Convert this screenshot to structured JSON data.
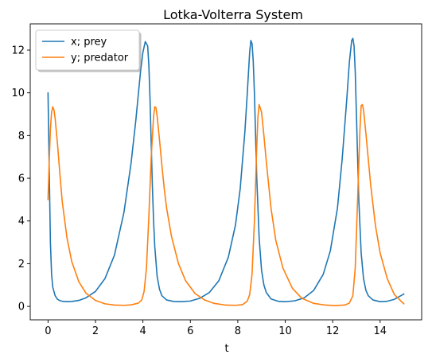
{
  "chart_data": {
    "type": "line",
    "title": "Lotka-Volterra System",
    "xlabel": "t",
    "ylabel": "",
    "xlim": [
      -0.75,
      15.75
    ],
    "ylim": [
      -0.63,
      13.23
    ],
    "xticks": [
      0,
      2,
      4,
      6,
      8,
      10,
      12,
      14
    ],
    "yticks": [
      0,
      2,
      4,
      6,
      8,
      10,
      12
    ],
    "grid": false,
    "legend_position": "top-left",
    "series": [
      {
        "name": "x; prey",
        "color": "#1f77b4",
        "x": [
          0,
          0.05,
          0.1,
          0.15,
          0.2,
          0.3,
          0.4,
          0.5,
          0.6,
          0.8,
          1.0,
          1.3,
          1.6,
          2.0,
          2.4,
          2.8,
          3.2,
          3.5,
          3.7,
          3.9,
          4.0,
          4.1,
          4.2,
          4.25,
          4.3,
          4.35,
          4.4,
          4.45,
          4.5,
          4.6,
          4.7,
          4.8,
          5.0,
          5.3,
          5.6,
          6.0,
          6.4,
          6.8,
          7.2,
          7.6,
          7.9,
          8.1,
          8.3,
          8.4,
          8.5,
          8.55,
          8.6,
          8.65,
          8.7,
          8.75,
          8.8,
          8.9,
          9.0,
          9.1,
          9.2,
          9.4,
          9.7,
          10.0,
          10.4,
          10.8,
          11.2,
          11.6,
          11.9,
          12.2,
          12.4,
          12.6,
          12.7,
          12.8,
          12.85,
          12.9,
          12.95,
          13.0,
          13.05,
          13.1,
          13.2,
          13.3,
          13.4,
          13.5,
          13.7,
          14.0,
          14.3,
          14.6,
          15.0
        ],
        "y": [
          10.0,
          6.5,
          3.0,
          1.5,
          0.9,
          0.5,
          0.33,
          0.27,
          0.24,
          0.22,
          0.23,
          0.28,
          0.4,
          0.7,
          1.3,
          2.4,
          4.4,
          6.7,
          8.7,
          11.0,
          11.9,
          12.4,
          12.2,
          11.3,
          9.7,
          7.6,
          5.6,
          4.0,
          2.8,
          1.4,
          0.8,
          0.5,
          0.3,
          0.23,
          0.22,
          0.25,
          0.38,
          0.65,
          1.2,
          2.3,
          3.8,
          5.5,
          8.2,
          10.0,
          11.9,
          12.45,
          12.3,
          11.5,
          10.0,
          8.0,
          6.0,
          3.2,
          1.7,
          1.0,
          0.65,
          0.35,
          0.24,
          0.22,
          0.26,
          0.4,
          0.75,
          1.5,
          2.6,
          4.6,
          6.9,
          9.8,
          11.4,
          12.45,
          12.55,
          12.2,
          11.0,
          9.0,
          7.0,
          5.0,
          2.5,
          1.3,
          0.75,
          0.5,
          0.3,
          0.22,
          0.24,
          0.33,
          0.58
        ]
      },
      {
        "name": "y; predator",
        "color": "#ff7f0e",
        "x": [
          0,
          0.05,
          0.1,
          0.15,
          0.2,
          0.25,
          0.3,
          0.4,
          0.5,
          0.6,
          0.8,
          1.0,
          1.3,
          1.6,
          2.0,
          2.4,
          2.8,
          3.2,
          3.5,
          3.8,
          3.95,
          4.05,
          4.15,
          4.25,
          4.35,
          4.45,
          4.5,
          4.55,
          4.6,
          4.7,
          4.8,
          4.9,
          5.0,
          5.2,
          5.5,
          5.8,
          6.2,
          6.6,
          7.0,
          7.5,
          7.9,
          8.2,
          8.4,
          8.5,
          8.6,
          8.7,
          8.8,
          8.85,
          8.9,
          9.0,
          9.1,
          9.2,
          9.4,
          9.6,
          9.9,
          10.3,
          10.7,
          11.2,
          11.7,
          12.1,
          12.5,
          12.7,
          12.85,
          12.95,
          13.05,
          13.15,
          13.2,
          13.25,
          13.3,
          13.4,
          13.5,
          13.6,
          13.8,
          14.0,
          14.3,
          14.6,
          15.0
        ],
        "y": [
          5.0,
          6.8,
          8.3,
          9.1,
          9.35,
          9.2,
          8.8,
          7.6,
          6.2,
          4.9,
          3.2,
          2.1,
          1.15,
          0.62,
          0.28,
          0.12,
          0.06,
          0.05,
          0.07,
          0.15,
          0.3,
          0.7,
          1.8,
          4.2,
          7.0,
          8.9,
          9.35,
          9.3,
          8.9,
          7.8,
          6.6,
          5.5,
          4.6,
          3.3,
          2.0,
          1.2,
          0.6,
          0.3,
          0.14,
          0.06,
          0.05,
          0.08,
          0.25,
          0.55,
          1.5,
          4.0,
          7.5,
          8.9,
          9.45,
          9.1,
          8.0,
          6.8,
          4.6,
          3.1,
          1.8,
          0.85,
          0.38,
          0.14,
          0.06,
          0.04,
          0.06,
          0.15,
          0.5,
          1.8,
          5.0,
          8.3,
          9.4,
          9.45,
          9.2,
          8.1,
          6.9,
          5.7,
          3.8,
          2.5,
          1.3,
          0.55,
          0.12
        ]
      }
    ]
  }
}
